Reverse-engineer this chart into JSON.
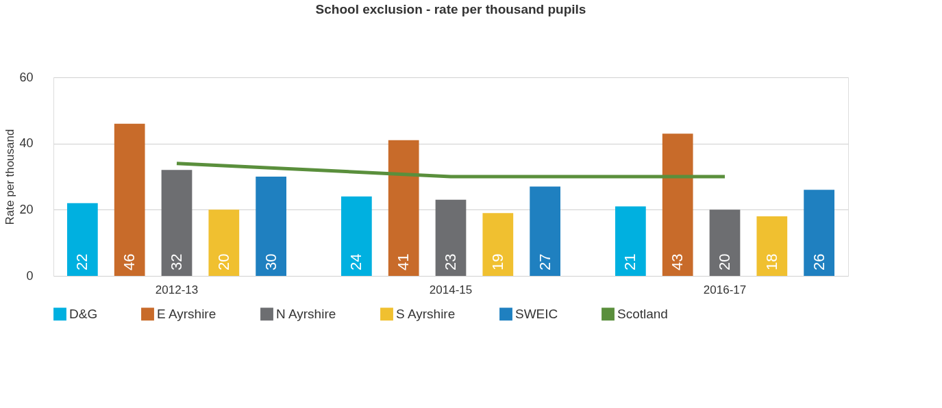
{
  "chart_data": {
    "type": "bar",
    "title": "School exclusion - rate per thousand pupils",
    "ylabel": "Rate per thousand",
    "categories": [
      "2012-13",
      "2014-15",
      "2016-17"
    ],
    "series": [
      {
        "name": "D&G",
        "color": "#00b0e0",
        "values": [
          22,
          24,
          21
        ],
        "value_labels": [
          "22",
          "24",
          "21"
        ]
      },
      {
        "name": "E Ayrshire",
        "color": "#c86b2a",
        "values": [
          46,
          41,
          43
        ],
        "value_labels": [
          "46",
          "41",
          "43"
        ]
      },
      {
        "name": "N Ayrshire",
        "color": "#6d6e71",
        "values": [
          32,
          23,
          20
        ],
        "value_labels": [
          "32",
          "23",
          "20"
        ]
      },
      {
        "name": "S Ayrshire",
        "color": "#f0c030",
        "values": [
          20,
          19,
          18
        ],
        "value_labels": [
          "20",
          "19",
          "18"
        ]
      },
      {
        "name": "SWEIC",
        "color": "#1f80c0",
        "values": [
          30,
          27,
          26
        ],
        "value_labels": [
          "30",
          "27",
          "26"
        ]
      },
      {
        "name": "Scotland",
        "type": "line",
        "color": "#5a8f3c",
        "values": [
          34,
          30,
          30
        ]
      }
    ],
    "ylim": [
      0,
      60
    ],
    "yticks": [
      0,
      20,
      40,
      60
    ],
    "grid": "y",
    "legend": "bottom"
  }
}
